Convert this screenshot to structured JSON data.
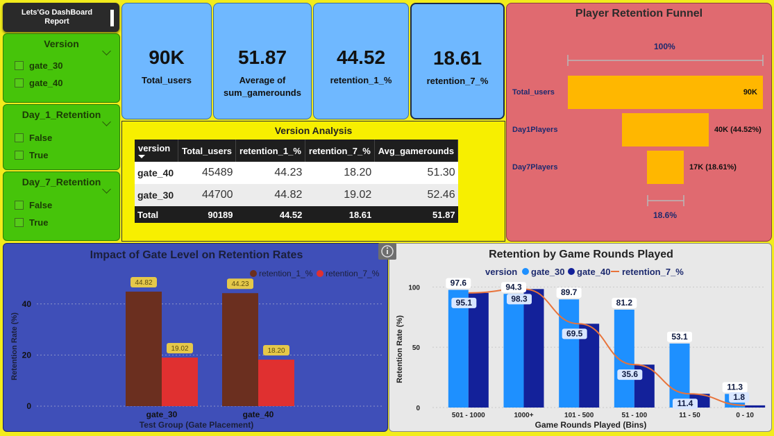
{
  "header": {
    "title": "Lets'Go DashBoard Report"
  },
  "slicers": [
    {
      "title": "Version",
      "options": [
        "gate_30",
        "gate_40"
      ]
    },
    {
      "title": "Day_1_Retention",
      "options": [
        "False",
        "True"
      ]
    },
    {
      "title": "Day_7_Retention",
      "options": [
        "False",
        "True"
      ]
    }
  ],
  "kpis": [
    {
      "value": "90K",
      "label": "Total_users"
    },
    {
      "value": "51.87",
      "label": "Average of sum_gamerounds"
    },
    {
      "value": "44.52",
      "label": "retention_1_%"
    },
    {
      "value": "18.61",
      "label": "retention_7_%"
    }
  ],
  "version_table": {
    "title": "Version Analysis",
    "columns": [
      "version",
      "Total_users",
      "retention_1_%",
      "retention_7_%",
      "Avg_gamerounds"
    ],
    "rows": [
      [
        "gate_40",
        "45489",
        "44.23",
        "18.20",
        "51.30"
      ],
      [
        "gate_30",
        "44700",
        "44.82",
        "19.02",
        "52.46"
      ]
    ],
    "total": [
      "Total",
      "90189",
      "44.52",
      "18.61",
      "51.87"
    ]
  },
  "funnel": {
    "title": "Player Retention Funnel",
    "top_pct": "100%",
    "bottom_pct": "18.6%",
    "stages": [
      {
        "label": "Total_users",
        "value": 90,
        "value_label": "90K"
      },
      {
        "label": "Day1Players",
        "value": 40,
        "value_label": "40K (44.52%)"
      },
      {
        "label": "Day7Players",
        "value": 17,
        "value_label": "17K (18.61%)"
      }
    ]
  },
  "chart_data": [
    {
      "type": "bar",
      "title": "Impact of Gate Level on Retention Rates",
      "xlabel": "Test Group (Gate Placement)",
      "ylabel": "Retention Rate (%)",
      "categories": [
        "gate_30",
        "gate_40"
      ],
      "series": [
        {
          "name": "retention_1_%",
          "values": [
            44.82,
            44.23
          ],
          "color": "#6b2f1f"
        },
        {
          "name": "retention_7_%",
          "values": [
            19.02,
            18.2
          ],
          "color": "#e03030"
        }
      ],
      "ylim": [
        0,
        50
      ],
      "yticks": [
        0,
        20,
        40
      ],
      "grid": true,
      "legend": "top-right"
    },
    {
      "type": "bar",
      "title": "Retention by Game Rounds Played",
      "xlabel": "Game Rounds Played (Bins)",
      "ylabel": "Retention Rate (%)",
      "legend_title": "version",
      "categories": [
        "501 - 1000",
        "1000+",
        "101 - 500",
        "51 - 100",
        "11 - 50",
        "0 - 10"
      ],
      "series": [
        {
          "name": "gate_30",
          "values": [
            97.6,
            94.3,
            89.7,
            81.2,
            53.1,
            11.3
          ],
          "color": "#1e90ff"
        },
        {
          "name": "gate_40",
          "values": [
            95.1,
            98.3,
            69.5,
            35.6,
            11.4,
            1.8
          ],
          "color": "#13219a"
        }
      ],
      "line": {
        "name": "retention_7_%",
        "values": [
          95.1,
          98.3,
          69.5,
          35.6,
          11.4,
          1.8
        ],
        "color": "#e8733a"
      },
      "data_labels": {
        "gate_30": [
          "97.6",
          "94.3",
          "89.7",
          "81.2",
          "53.1",
          "11.3"
        ],
        "gate_40": [
          "95.1",
          "98.3",
          "69.5",
          "35.6",
          "11.4",
          "1.8"
        ]
      },
      "ylim": [
        0,
        110
      ],
      "yticks": [
        0,
        50,
        100
      ],
      "grid": true,
      "legend": "top"
    }
  ]
}
